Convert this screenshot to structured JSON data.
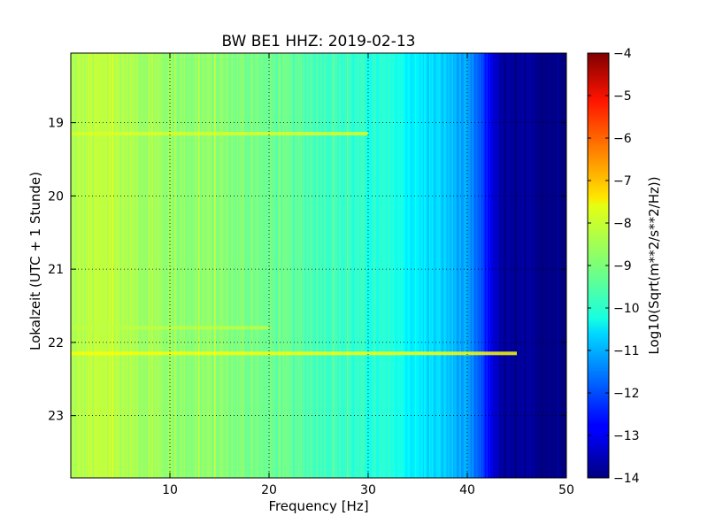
{
  "chart_data": {
    "type": "heatmap",
    "title": "BW BE1 HHZ: 2019-02-13",
    "xlabel": "Frequency [Hz]",
    "ylabel": "Lokalzeit (UTC + 1 Stunde)",
    "xlim": [
      0,
      50
    ],
    "ylim": [
      23.85,
      18.05
    ],
    "x_ticks": [
      10,
      20,
      30,
      40,
      50
    ],
    "y_ticks": [
      19,
      20,
      21,
      22,
      23
    ],
    "grid": true,
    "grid_style": "dotted",
    "colormap": "jet",
    "colorbar": {
      "label": "Log10(Sqrt(m**2/s**2/Hz))",
      "range": [
        -14,
        -4
      ],
      "ticks": [
        -4,
        -5,
        -6,
        -7,
        -8,
        -9,
        -10,
        -11,
        -12,
        -13,
        -14
      ]
    },
    "spectrum_profile": {
      "frequencies": [
        0,
        2,
        5,
        10,
        15,
        20,
        25,
        30,
        33,
        34,
        38,
        40,
        41,
        42,
        43,
        43.5,
        50
      ],
      "values": [
        -8.6,
        -8.4,
        -8.5,
        -8.8,
        -8.9,
        -9.2,
        -9.5,
        -9.9,
        -10.0,
        -10.3,
        -10.8,
        -11.3,
        -11.8,
        -12.6,
        -13.4,
        -13.8,
        -13.9
      ]
    },
    "features": [
      {
        "time": 19.15,
        "freq_range": [
          0,
          30
        ],
        "value": -8.1
      },
      {
        "time": 22.15,
        "freq_range": [
          0,
          45
        ],
        "value": -7.8
      },
      {
        "time": 21.8,
        "freq_range": [
          0,
          20
        ],
        "value": -8.4
      }
    ]
  }
}
